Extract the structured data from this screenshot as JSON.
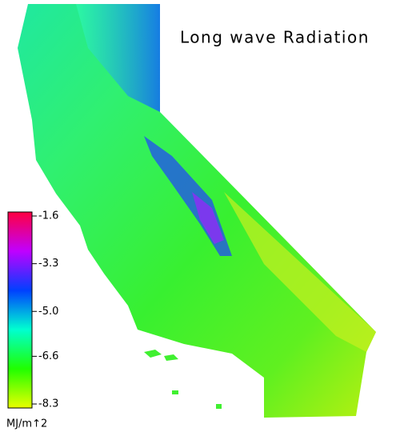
{
  "title": "Long wave Radiation",
  "colorbar": {
    "lim": [
      -8.3,
      -1.6
    ],
    "ticks": [
      -1.6,
      -3.3,
      {
        "value": -5,
        "label": "-5.0"
      },
      -6.6,
      -8.3
    ],
    "colors": [
      "#e8ff00",
      "#20ff00",
      "#00ffd0",
      "#0040ff",
      "#c000ff",
      "#ff0040"
    ],
    "unit": "MJ/m↑2"
  }
}
